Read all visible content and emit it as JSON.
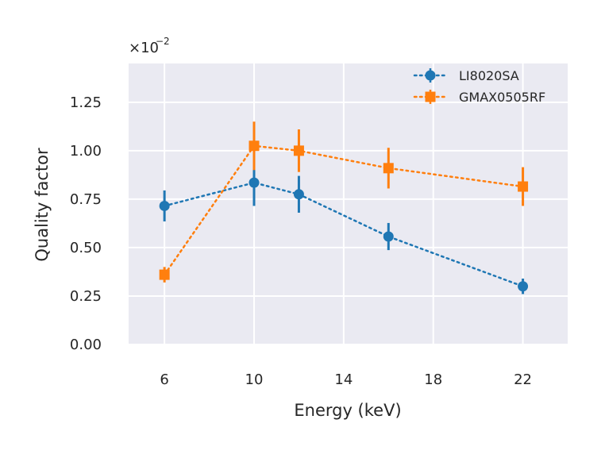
{
  "chart_data": {
    "type": "line",
    "title": "",
    "xlabel": "Energy (keV)",
    "ylabel": "Quality factor",
    "xlim": [
      4.4,
      24.0
    ],
    "ylim": [
      -0.0,
      1.45
    ],
    "x_ticks": [
      6,
      10,
      14,
      18,
      22
    ],
    "x_tick_labels": [
      "6",
      "10",
      "14",
      "18",
      "22"
    ],
    "y_ticks": [
      0.0,
      0.25,
      0.5,
      0.75,
      1.0,
      1.25
    ],
    "y_tick_labels": [
      "0.00",
      "0.25",
      "0.50",
      "0.75",
      "1.00",
      "1.25"
    ],
    "y_offset_base": "×10",
    "y_offset_exponent": "−2",
    "grid": true,
    "legend_position": "top-right",
    "series": [
      {
        "name": "LI8020SA",
        "color": "#1f77b4",
        "marker": "circle",
        "linestyle": "dotted",
        "x": [
          6,
          10,
          12,
          16,
          22
        ],
        "values": [
          0.715,
          0.835,
          0.775,
          0.557,
          0.3
        ],
        "errors": [
          0.08,
          0.12,
          0.095,
          0.07,
          0.04
        ]
      },
      {
        "name": "GMAX0505RF",
        "color": "#ff7f0e",
        "marker": "square",
        "linestyle": "dotted",
        "x": [
          6,
          10,
          12,
          16,
          22
        ],
        "values": [
          0.36,
          1.025,
          1.0,
          0.91,
          0.815
        ],
        "errors": [
          0.04,
          0.125,
          0.11,
          0.105,
          0.1
        ]
      }
    ]
  }
}
